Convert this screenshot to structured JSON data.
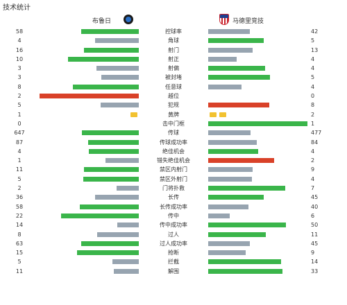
{
  "header": {
    "title": "技术统计"
  },
  "teams": {
    "home": "布鲁日",
    "away": "马德里竞技"
  },
  "colors": {
    "win": "#3ab54a",
    "lose": "#97a4b0",
    "red": "#d94128",
    "card": "#f2c230"
  },
  "stats": [
    {
      "label": "控球率",
      "home": "58",
      "away": "42",
      "home_frac": 0.58,
      "away_frac": 0.42,
      "home_color": "win",
      "away_color": "lose"
    },
    {
      "label": "角球",
      "home": "4",
      "away": "5",
      "home_frac": 0.444,
      "away_frac": 0.556,
      "home_color": "lose",
      "away_color": "win"
    },
    {
      "label": "射门",
      "home": "16",
      "away": "13",
      "home_frac": 0.552,
      "away_frac": 0.448,
      "home_color": "win",
      "away_color": "lose"
    },
    {
      "label": "射正",
      "home": "10",
      "away": "4",
      "home_frac": 0.714,
      "away_frac": 0.286,
      "home_color": "win",
      "away_color": "lose"
    },
    {
      "label": "射偏",
      "home": "3",
      "away": "4",
      "home_frac": 0.429,
      "away_frac": 0.571,
      "home_color": "lose",
      "away_color": "win"
    },
    {
      "label": "被封堵",
      "home": "3",
      "away": "5",
      "home_frac": 0.375,
      "away_frac": 0.625,
      "home_color": "lose",
      "away_color": "win"
    },
    {
      "label": "任意球",
      "home": "8",
      "away": "4",
      "home_frac": 0.667,
      "away_frac": 0.333,
      "home_color": "win",
      "away_color": "lose"
    },
    {
      "label": "越位",
      "home": "2",
      "away": "0",
      "home_frac": 1.0,
      "away_frac": 0.0,
      "home_color": "red",
      "away_color": "lose"
    },
    {
      "label": "犯规",
      "home": "5",
      "away": "8",
      "home_frac": 0.385,
      "away_frac": 0.615,
      "home_color": "lose",
      "away_color": "red"
    },
    {
      "label": "黄牌",
      "home": "1",
      "away": "2",
      "home_cards": 1,
      "away_cards": 2
    },
    {
      "label": "击中门框",
      "home": "0",
      "away": "1",
      "home_frac": 0.0,
      "away_frac": 1.0,
      "home_color": "lose",
      "away_color": "win"
    },
    {
      "label": "传球",
      "home": "647",
      "away": "477",
      "home_frac": 0.576,
      "away_frac": 0.424,
      "home_color": "win",
      "away_color": "lose"
    },
    {
      "label": "传球成功率",
      "home": "87",
      "away": "84",
      "home_frac": 0.509,
      "away_frac": 0.491,
      "home_color": "win",
      "away_color": "lose"
    },
    {
      "label": "绝佳机会",
      "home": "4",
      "away": "4",
      "home_frac": 0.5,
      "away_frac": 0.5,
      "home_color": "win",
      "away_color": "win"
    },
    {
      "label": "错失绝佳机会",
      "home": "1",
      "away": "2",
      "home_frac": 0.333,
      "away_frac": 0.667,
      "home_color": "lose",
      "away_color": "red"
    },
    {
      "label": "禁区内射门",
      "home": "11",
      "away": "9",
      "home_frac": 0.55,
      "away_frac": 0.45,
      "home_color": "win",
      "away_color": "lose"
    },
    {
      "label": "禁区外射门",
      "home": "5",
      "away": "4",
      "home_frac": 0.556,
      "away_frac": 0.444,
      "home_color": "win",
      "away_color": "lose"
    },
    {
      "label": "门将扑救",
      "home": "2",
      "away": "7",
      "home_frac": 0.222,
      "away_frac": 0.778,
      "home_color": "lose",
      "away_color": "win"
    },
    {
      "label": "长传",
      "home": "36",
      "away": "45",
      "home_frac": 0.444,
      "away_frac": 0.556,
      "home_color": "lose",
      "away_color": "win"
    },
    {
      "label": "长传成功率",
      "home": "58",
      "away": "40",
      "home_frac": 0.592,
      "away_frac": 0.408,
      "home_color": "win",
      "away_color": "lose"
    },
    {
      "label": "传中",
      "home": "22",
      "away": "6",
      "home_frac": 0.786,
      "away_frac": 0.214,
      "home_color": "win",
      "away_color": "lose"
    },
    {
      "label": "传中成功率",
      "home": "14",
      "away": "50",
      "home_frac": 0.219,
      "away_frac": 0.781,
      "home_color": "lose",
      "away_color": "win"
    },
    {
      "label": "过人",
      "home": "8",
      "away": "11",
      "home_frac": 0.421,
      "away_frac": 0.579,
      "home_color": "lose",
      "away_color": "win"
    },
    {
      "label": "过人成功率",
      "home": "63",
      "away": "45",
      "home_frac": 0.583,
      "away_frac": 0.417,
      "home_color": "win",
      "away_color": "lose"
    },
    {
      "label": "抢断",
      "home": "15",
      "away": "9",
      "home_frac": 0.625,
      "away_frac": 0.375,
      "home_color": "win",
      "away_color": "lose"
    },
    {
      "label": "拦截",
      "home": "5",
      "away": "14",
      "home_frac": 0.263,
      "away_frac": 0.737,
      "home_color": "lose",
      "away_color": "win"
    },
    {
      "label": "解围",
      "home": "11",
      "away": "33",
      "home_frac": 0.25,
      "away_frac": 0.75,
      "home_color": "lose",
      "away_color": "win"
    }
  ]
}
